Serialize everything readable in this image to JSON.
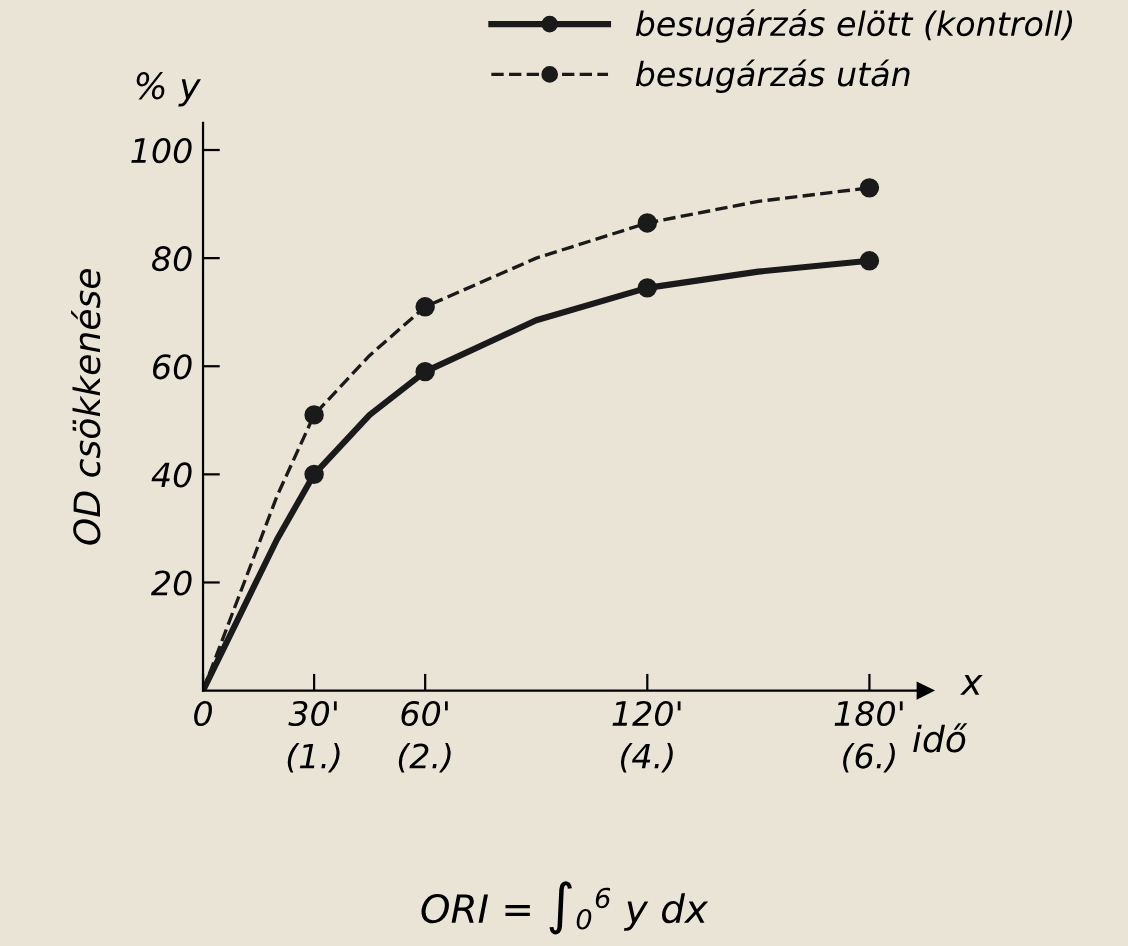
{
  "chart_data": {
    "type": "line",
    "xlabel": "idő",
    "ylabel": "OD csökkenése",
    "series": [
      {
        "name": "besugárzás elött (kontroll)",
        "color": "#1a1a1a",
        "x": [
          0,
          10,
          20,
          30,
          45,
          60,
          90,
          120,
          150,
          180
        ],
        "values": [
          0,
          14,
          28,
          40,
          51,
          59,
          68.5,
          74.5,
          77.5,
          79.5
        ],
        "line_style": "solid",
        "marker": "none"
      },
      {
        "name": "besugárzás után",
        "color": "#1a1a1a",
        "x": [
          0,
          10,
          20,
          30,
          45,
          60,
          90,
          120,
          150,
          180
        ],
        "values": [
          0,
          18,
          36,
          51,
          62,
          71,
          80,
          86.5,
          90.5,
          93
        ],
        "line_style": "dashed",
        "marker": "none"
      },
      {
        "type": "scatter",
        "color": "#1a1a1a",
        "x": [
          30,
          60,
          120,
          180
        ],
        "values": [
          40,
          59,
          74.5,
          79.5
        ]
      },
      {
        "type": "scatter",
        "color": "#1a1a1a",
        "x": [
          30,
          60,
          120,
          180
        ],
        "values": [
          51,
          71,
          86.5,
          93
        ]
      }
    ],
    "xlim": [
      0,
      195
    ],
    "ylim": [
      0,
      105
    ],
    "xticks": [
      {
        "value": 0,
        "label": "0"
      },
      {
        "value": 30,
        "label": "30'"
      },
      {
        "value": 60,
        "label": "60'"
      },
      {
        "value": 120,
        "label": "120'"
      },
      {
        "value": 180,
        "label": "180'"
      }
    ],
    "x2lim": [
      0,
      6.5
    ],
    "x2ticks": [
      {
        "value": 1,
        "label": "(1.)"
      },
      {
        "value": 2,
        "label": "(2.)"
      },
      {
        "value": 4,
        "label": "(4.)"
      },
      {
        "value": 6,
        "label": "(6.)"
      }
    ],
    "yticks": [
      20,
      40,
      60,
      80,
      100
    ],
    "marker": "circle",
    "grid": false,
    "legend": "top right",
    "annotations": [
      "% y",
      "x",
      "ORI = ∫$_{0}$$^{6}$ y dx"
    ]
  }
}
